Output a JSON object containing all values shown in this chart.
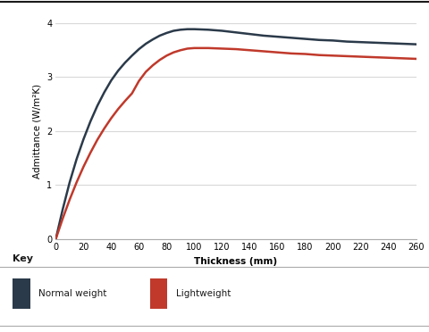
{
  "normal_weight_x": [
    0,
    5,
    10,
    15,
    20,
    25,
    30,
    35,
    40,
    45,
    50,
    55,
    60,
    65,
    70,
    75,
    80,
    85,
    90,
    95,
    100,
    110,
    120,
    130,
    140,
    150,
    160,
    170,
    180,
    190,
    200,
    210,
    220,
    230,
    240,
    250,
    260
  ],
  "normal_weight_y": [
    0.0,
    0.55,
    1.05,
    1.48,
    1.85,
    2.18,
    2.47,
    2.72,
    2.94,
    3.12,
    3.27,
    3.4,
    3.52,
    3.62,
    3.7,
    3.77,
    3.82,
    3.86,
    3.88,
    3.89,
    3.89,
    3.88,
    3.86,
    3.83,
    3.8,
    3.77,
    3.75,
    3.73,
    3.71,
    3.69,
    3.68,
    3.66,
    3.65,
    3.64,
    3.63,
    3.62,
    3.61
  ],
  "lightweight_x": [
    0,
    5,
    10,
    15,
    20,
    25,
    30,
    35,
    40,
    45,
    50,
    55,
    60,
    65,
    70,
    75,
    80,
    85,
    90,
    95,
    100,
    110,
    120,
    130,
    140,
    150,
    160,
    170,
    180,
    190,
    200,
    210,
    220,
    230,
    240,
    250,
    260
  ],
  "lightweight_y": [
    0.0,
    0.38,
    0.73,
    1.05,
    1.34,
    1.6,
    1.84,
    2.05,
    2.24,
    2.41,
    2.56,
    2.7,
    2.93,
    3.1,
    3.22,
    3.32,
    3.4,
    3.46,
    3.5,
    3.53,
    3.54,
    3.54,
    3.53,
    3.52,
    3.5,
    3.48,
    3.46,
    3.44,
    3.43,
    3.41,
    3.4,
    3.39,
    3.38,
    3.37,
    3.36,
    3.35,
    3.34
  ],
  "normal_weight_color": "#2b3a4a",
  "lightweight_color": "#c0392b",
  "xlabel": "Thickness (mm)",
  "ylabel": "Admittance (W/m²K)",
  "xlim": [
    0,
    260
  ],
  "ylim": [
    0,
    4
  ],
  "xticks": [
    0,
    20,
    40,
    60,
    80,
    100,
    120,
    140,
    160,
    180,
    200,
    220,
    240,
    260
  ],
  "yticks": [
    0,
    1,
    2,
    3,
    4
  ],
  "legend_labels": [
    "Normal weight",
    "Lightweight"
  ],
  "legend_title": "Key",
  "background_color": "#ffffff",
  "plot_bg_color": "#ffffff",
  "grid_color": "#d8d8d8",
  "top_border_color": "#1a1a1a",
  "line_width": 1.8
}
